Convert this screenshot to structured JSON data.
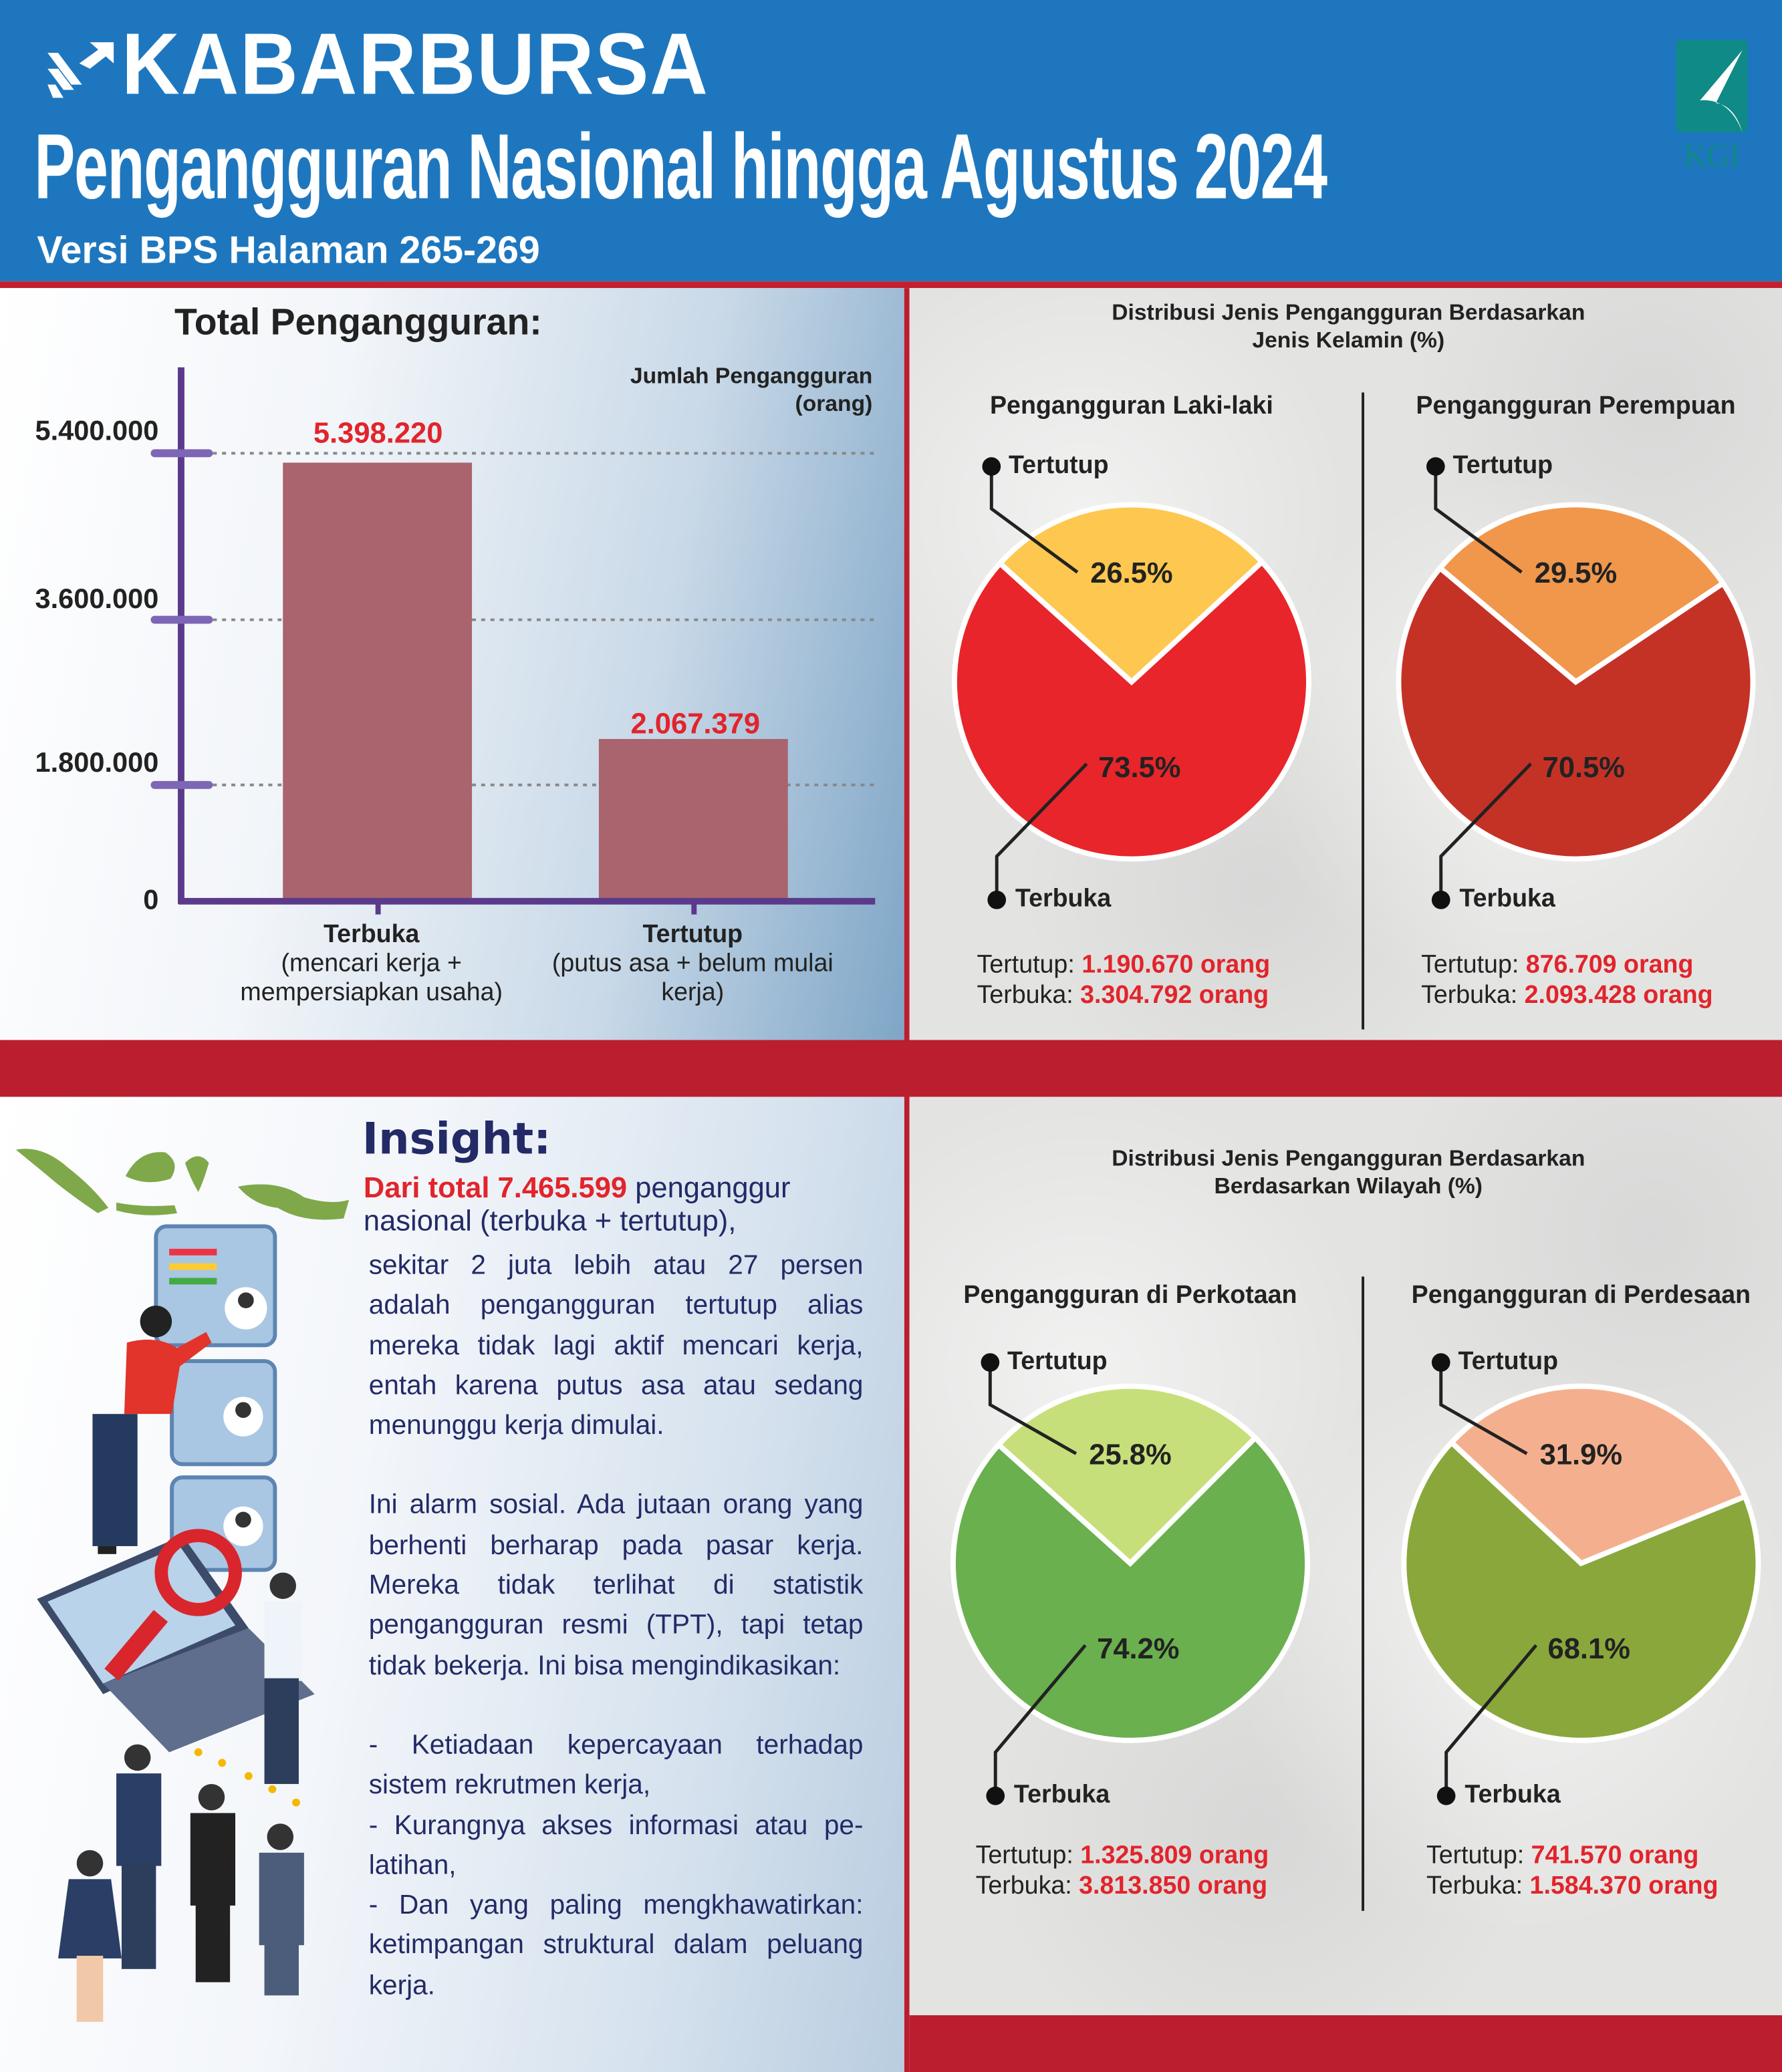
{
  "header": {
    "brand": "KABARBURSA",
    "title": "Pengangguran Nasional hingga Agustus 2024",
    "subtitle": "Versi BPS Halaman 265-269",
    "partner_logo": "KGI",
    "colors": {
      "background": "#1e77be",
      "accent_line": "#c41f2f"
    }
  },
  "chart_data": [
    {
      "type": "bar",
      "title": "Total Pengangguran:",
      "ylabel": "Jumlah Pengangguran (orang)",
      "ylabel_lines": [
        "Jumlah Pengangguran",
        "(orang)"
      ],
      "yticks": [
        0,
        1800000,
        3600000,
        5400000
      ],
      "ytick_labels": [
        "0",
        "1.800.000",
        "3.600.000",
        "5.400.000"
      ],
      "ylim": [
        0,
        5400000
      ],
      "grid": "dotted horizontal at ticks",
      "categories": [
        "Terbuka",
        "Tertutup"
      ],
      "category_notes": [
        "(mencari kerja + mempersiapkan usaha)",
        "(putus asa + belum mulai kerja)"
      ],
      "values": [
        5398220,
        2067379
      ],
      "value_labels": [
        "5.398.220",
        "2.067.379"
      ],
      "bar_color": "#a9646d",
      "axis_color": "#5b3a8c"
    },
    {
      "type": "pie",
      "group_title": "Distribusi Jenis Pengangguran Berdasarkan Jenis Kelamin (%)",
      "group_title_lines": [
        "Distribusi Jenis Pengangguran Berdasarkan",
        "Jenis Kelamin (%)"
      ],
      "title": "Pengangguran Laki-laki",
      "slices": [
        {
          "name": "Tertutup",
          "value": 26.5,
          "label": "26.5%",
          "color": "#fec74f"
        },
        {
          "name": "Terbuka",
          "value": 73.5,
          "label": "73.5%",
          "color": "#e8252a"
        }
      ],
      "counts": [
        {
          "label": "Tertutup:",
          "value": "1.190.670 orang"
        },
        {
          "label": "Terbuka:",
          "value": "3.304.792 orang"
        }
      ]
    },
    {
      "type": "pie",
      "title": "Pengangguran Perempuan",
      "slices": [
        {
          "name": "Tertutup",
          "value": 29.5,
          "label": "29.5%",
          "color": "#f0974c"
        },
        {
          "name": "Terbuka",
          "value": 70.5,
          "label": "70.5%",
          "color": "#c43226"
        }
      ],
      "counts": [
        {
          "label": "Tertutup:",
          "value": "876.709 orang"
        },
        {
          "label": "Terbuka:",
          "value": "2.093.428 orang"
        }
      ]
    },
    {
      "type": "pie",
      "group_title": "Distribusi Jenis Pengangguran Berdasarkan Berdasarkan Wilayah (%)",
      "group_title_lines": [
        "Distribusi Jenis Pengangguran Berdasarkan",
        "Berdasarkan Wilayah (%)"
      ],
      "title": "Pengangguran di Perkotaan",
      "slices": [
        {
          "name": "Tertutup",
          "value": 25.8,
          "label": "25.8%",
          "color": "#c7df7a"
        },
        {
          "name": "Terbuka",
          "value": 74.2,
          "label": "74.2%",
          "color": "#6ab04e"
        }
      ],
      "counts": [
        {
          "label": "Tertutup:",
          "value": "1.325.809 orang"
        },
        {
          "label": "Terbuka:",
          "value": "3.813.850 orang"
        }
      ]
    },
    {
      "type": "pie",
      "title": "Pengangguran di Perdesaan",
      "slices": [
        {
          "name": "Tertutup",
          "value": 31.9,
          "label": "31.9%",
          "color": "#f4b08e"
        },
        {
          "name": "Terbuka",
          "value": 68.1,
          "label": "68.1%",
          "color": "#8aa73c"
        }
      ],
      "counts": [
        {
          "label": "Tertutup:",
          "value": "741.570 orang"
        },
        {
          "label": "Terbuka:",
          "value": "1.584.370 orang"
        }
      ]
    }
  ],
  "insight": {
    "heading": "Insight:",
    "lead_highlight": "Dari total 7.465.599",
    "lead_rest": " penganggur nasional (terbuka + tertutup),",
    "paragraph_1": "sekitar 2 juta lebih atau 27 persen adalah pengangguran tertutup alias mereka tidak lagi aktif mencari kerja, entah karena putus asa atau sedang menunggu kerja dimulai.",
    "paragraph_2": "Ini alarm sosial. Ada jutaan orang yang berhenti berharap pada pasar kerja. Mereka tidak terlihat di statis­tik pengangguran resmi (TPT), tapi tetap tidak bekerja. Ini bisa mengin­dikasikan:",
    "list": [
      "- Ketiadaan kepercayaan terhadap sistem rekrutmen kerja,",
      "- Kurangnya akses informasi atau pe­latihan,",
      "- Dan yang paling mengkhawatirkan: ketimpangan struktural dalam pe­luang kerja."
    ]
  }
}
